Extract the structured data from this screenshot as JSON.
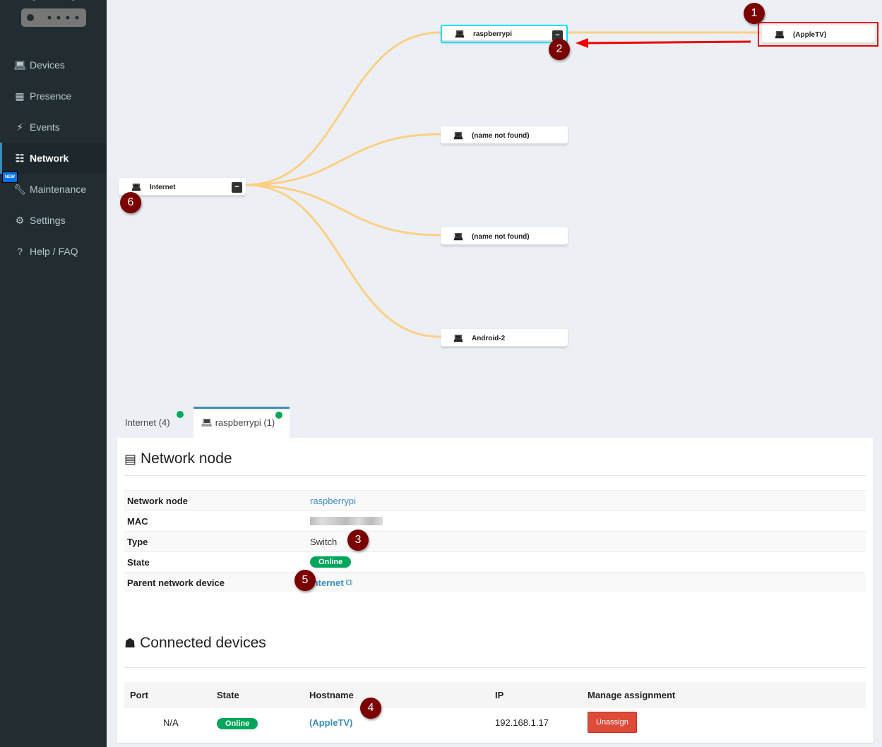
{
  "sidebar": {
    "items": [
      {
        "label": "Devices",
        "icon": "laptop-icon"
      },
      {
        "label": "Presence",
        "icon": "calendar-icon"
      },
      {
        "label": "Events",
        "icon": "bolt-icon"
      },
      {
        "label": "Network",
        "icon": "sitemap-icon",
        "active": true
      },
      {
        "label": "Maintenance",
        "icon": "wrench-icon",
        "badge": "NEW"
      },
      {
        "label": "Settings",
        "icon": "gear-icon"
      },
      {
        "label": "Help / FAQ",
        "icon": "question-icon"
      }
    ]
  },
  "tree": {
    "root": {
      "label": "Internet",
      "collapse": "−"
    },
    "children": [
      {
        "label": "raspberrypi",
        "collapse": "−"
      },
      {
        "label": "(name not found)"
      },
      {
        "label": "(name not found)"
      },
      {
        "label": "Android-2"
      }
    ],
    "grandchild": {
      "label": "(AppleTV)"
    },
    "link_color": "#fdcf85"
  },
  "annotations": [
    "1",
    "2",
    "3",
    "4",
    "5",
    "6"
  ],
  "tabs": [
    {
      "label": "Internet (4)"
    },
    {
      "label": "raspberrypi (1)",
      "active": true
    }
  ],
  "node_section": {
    "title": "Network node",
    "rows": [
      {
        "key": "Network node",
        "value": "raspberrypi"
      },
      {
        "key": "MAC",
        "value": ""
      },
      {
        "key": "Type",
        "value": "Switch"
      },
      {
        "key": "State",
        "value": "Online"
      },
      {
        "key": "Parent network device",
        "value": "Internet"
      }
    ]
  },
  "connected": {
    "title": "Connected devices",
    "headers": [
      "Port",
      "State",
      "Hostname",
      "IP",
      "Manage assignment"
    ],
    "rows": [
      {
        "port": "N/A",
        "state": "Online",
        "hostname": "(AppleTV)",
        "ip": "192.168.1.17",
        "action": "Unassign"
      }
    ]
  }
}
